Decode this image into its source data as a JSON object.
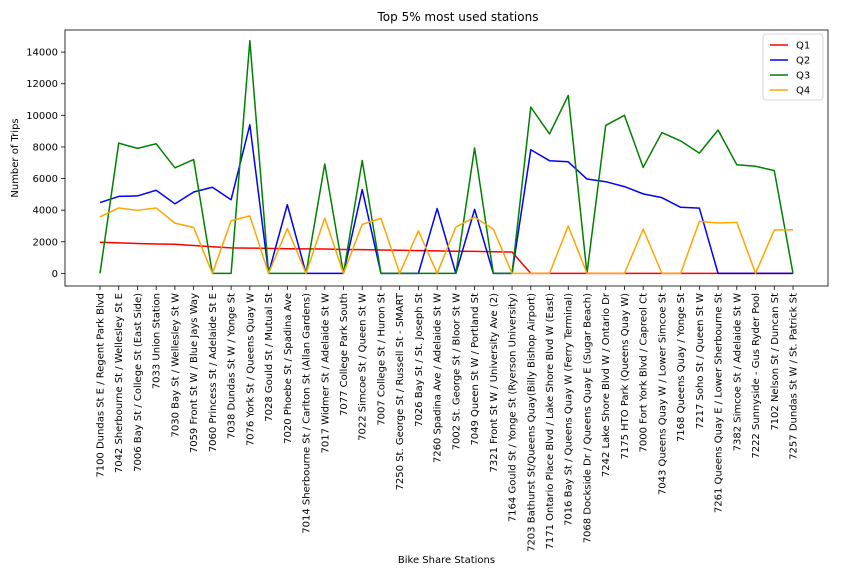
{
  "chart_data": {
    "type": "line",
    "title": "Top 5% most used stations",
    "xlabel": "Bike Share Stations",
    "ylabel": "Number of Trips",
    "ylim": [
      -800,
      15400
    ],
    "yticks": [
      0,
      2000,
      4000,
      6000,
      8000,
      10000,
      12000,
      14000
    ],
    "grid": false,
    "legend_position": "top-right",
    "categories": [
      "7100 Dundas St E / Regent Park Blvd",
      "7042 Sherbourne St / Wellesley St E",
      "7006 Bay St / College St (East Side)",
      "7033 Union Station",
      "7030 Bay St / Wellesley St W",
      "7059 Front St W / Blue Jays Way",
      "7060 Princess St / Adelaide St E",
      "7038 Dundas St W / Yonge St",
      "7076 York St / Queens Quay W",
      "7028 Gould St / Mutual St",
      "7020 Phoebe St / Spadina Ave",
      "7014 Sherbourne St / Carlton St (Allan Gardens)",
      "7017 Widmer St / Adelaide St W",
      "7077 College Park South",
      "7022 Simcoe St / Queen St W",
      "7007 College St / Huron St",
      "7250 St. George St / Russell St - SMART",
      "7026 Bay St / St. Joseph St",
      "7260 Spadina Ave / Adelaide St W",
      "7002 St. George St / Bloor St W",
      "7049 Queen St W / Portland St",
      "7321 Front St W / University Ave (2)",
      "7164 Gould St / Yonge St (Ryerson University)",
      "7203 Bathurst St/Queens Quay(Billy Bishop Airport)",
      "7171 Ontario Place Blvd / Lake Shore Blvd W (East)",
      "7016 Bay St / Queens Quay W (Ferry Terminal)",
      "7068 Dockside Dr / Queens Quay E (Sugar Beach)",
      "7242 Lake Shore Blvd W / Ontario Dr",
      "7175 HTO Park (Queens Quay W)",
      "7000 Fort York  Blvd / Capreol Ct",
      "7043 Queens Quay W / Lower Simcoe St",
      "7168 Queens Quay / Yonge St",
      "7217 Soho St / Queen St W",
      "7261 Queens Quay E / Lower Sherbourne St",
      "7382 Simcoe St / Adelaide St W",
      "7222 Sunnyside - Gus Ryder Pool",
      "7102 Nelson St / Duncan St",
      "7257 Dundas St W / St. Patrick St"
    ],
    "series": [
      {
        "name": "Q1",
        "color": "#ff0000",
        "values": [
          1970,
          1930,
          1890,
          1860,
          1840,
          1760,
          1680,
          1610,
          1600,
          1580,
          1560,
          1550,
          1540,
          1510,
          1500,
          1480,
          1460,
          1440,
          1420,
          1400,
          1390,
          1370,
          1350,
          0,
          0,
          0,
          0,
          0,
          0,
          0,
          0,
          0,
          0,
          0,
          0,
          0,
          0,
          0
        ]
      },
      {
        "name": "Q2",
        "color": "#0000ff",
        "values": [
          4480,
          4870,
          4900,
          5260,
          4400,
          5150,
          5450,
          4660,
          9400,
          0,
          4350,
          0,
          0,
          0,
          5300,
          0,
          0,
          0,
          4100,
          0,
          4050,
          0,
          0,
          7820,
          7130,
          7060,
          5970,
          5800,
          5490,
          5030,
          4790,
          4180,
          4130,
          0,
          0,
          0,
          0,
          0
        ]
      },
      {
        "name": "Q3",
        "color": "#008000",
        "values": [
          0,
          8240,
          7910,
          8200,
          6680,
          7200,
          0,
          0,
          14720,
          0,
          0,
          0,
          6920,
          0,
          7140,
          0,
          0,
          0,
          0,
          0,
          7930,
          0,
          0,
          10520,
          8820,
          11260,
          0,
          9360,
          10000,
          6710,
          8910,
          8380,
          7610,
          9070,
          6870,
          6780,
          6500,
          0
        ]
      },
      {
        "name": "Q4",
        "color": "#ffa500",
        "values": [
          3580,
          4140,
          3990,
          4140,
          3180,
          2900,
          0,
          3330,
          3640,
          0,
          2830,
          0,
          3500,
          0,
          3100,
          3480,
          0,
          2690,
          0,
          2930,
          3560,
          2800,
          0,
          0,
          0,
          3000,
          0,
          0,
          0,
          2800,
          0,
          0,
          3290,
          3190,
          3230,
          0,
          2740,
          2760
        ]
      }
    ]
  }
}
